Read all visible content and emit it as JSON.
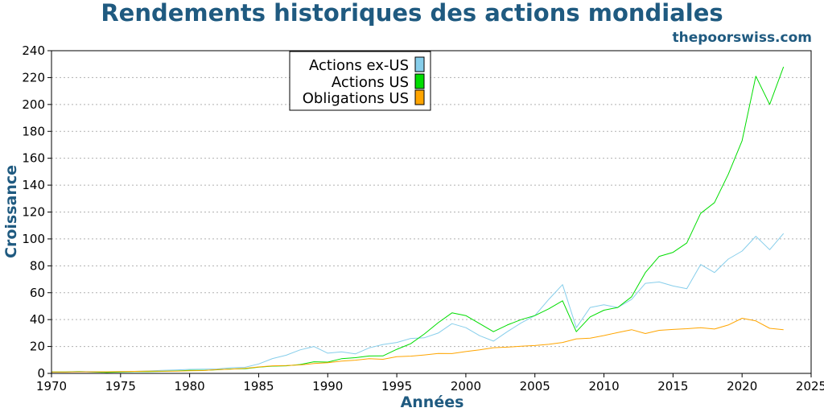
{
  "chart_data": {
    "type": "line",
    "title": "Rendements historiques des actions mondiales",
    "subtitle": "thepoorswiss.com",
    "xlabel": "Années",
    "ylabel": "Croissance",
    "xlim": [
      1970,
      2025
    ],
    "ylim": [
      0,
      240
    ],
    "xticks": [
      1970,
      1975,
      1980,
      1985,
      1990,
      1995,
      2000,
      2005,
      2010,
      2015,
      2020,
      2025
    ],
    "yticks": [
      0,
      20,
      40,
      60,
      80,
      100,
      120,
      140,
      160,
      180,
      200,
      220,
      240
    ],
    "grid": "horizontal",
    "legend_position": "top-center",
    "x": [
      1970,
      1971,
      1972,
      1973,
      1974,
      1975,
      1976,
      1977,
      1978,
      1979,
      1980,
      1981,
      1982,
      1983,
      1984,
      1985,
      1986,
      1987,
      1988,
      1989,
      1990,
      1991,
      1992,
      1993,
      1994,
      1995,
      1996,
      1997,
      1998,
      1999,
      2000,
      2001,
      2002,
      2003,
      2004,
      2005,
      2006,
      2007,
      2008,
      2009,
      2010,
      2011,
      2012,
      2013,
      2014,
      2015,
      2016,
      2017,
      2018,
      2019,
      2020,
      2021,
      2022,
      2023
    ],
    "series": [
      {
        "name": "Actions ex-US",
        "color": "#87ceeb",
        "values": [
          1,
          1.2,
          1.5,
          1.3,
          1,
          1.3,
          1.5,
          1.8,
          2.2,
          2.6,
          3,
          3.1,
          3.3,
          4.2,
          4.5,
          7,
          11,
          13.5,
          17.5,
          20,
          15,
          16,
          14.5,
          19,
          21.5,
          23,
          26,
          26.5,
          30,
          37,
          34,
          28,
          24,
          31,
          37.5,
          43,
          55,
          66,
          34,
          49,
          51,
          49,
          55,
          67,
          68,
          65,
          63,
          81,
          75,
          85,
          91,
          102,
          92,
          104
        ]
      },
      {
        "name": "Actions US",
        "color": "#00dd00",
        "values": [
          1,
          1.1,
          1.3,
          1.1,
          0.8,
          1.1,
          1.4,
          1.3,
          1.5,
          1.8,
          2.3,
          2.2,
          2.7,
          3.3,
          3.5,
          4.6,
          5.4,
          5.6,
          6.6,
          8.6,
          8.4,
          10.9,
          11.7,
          12.9,
          13,
          17.9,
          22,
          29.3,
          37.7,
          45,
          43,
          37,
          31,
          36,
          40,
          43,
          48,
          54,
          31,
          42,
          47,
          49,
          57,
          75,
          87,
          90,
          97,
          119,
          127,
          148,
          173,
          221,
          200,
          228
        ]
      },
      {
        "name": "Obligations US",
        "color": "#ffa500",
        "values": [
          1,
          1.1,
          1.2,
          1.2,
          1.2,
          1.3,
          1.5,
          1.6,
          1.6,
          1.7,
          1.9,
          2.1,
          2.9,
          3.2,
          3.7,
          4.8,
          5.6,
          5.8,
          6.3,
          7.3,
          7.9,
          9.1,
          9.8,
          10.9,
          10.5,
          12.4,
          12.8,
          13.7,
          14.8,
          14.7,
          16.2,
          17.5,
          19.1,
          19.5,
          20.2,
          20.7,
          21.6,
          23,
          25.7,
          26.2,
          28.1,
          30.4,
          32.5,
          29.6,
          32,
          32.7,
          33.2,
          34,
          33,
          36,
          41,
          39,
          33.5,
          32.5
        ]
      }
    ]
  }
}
